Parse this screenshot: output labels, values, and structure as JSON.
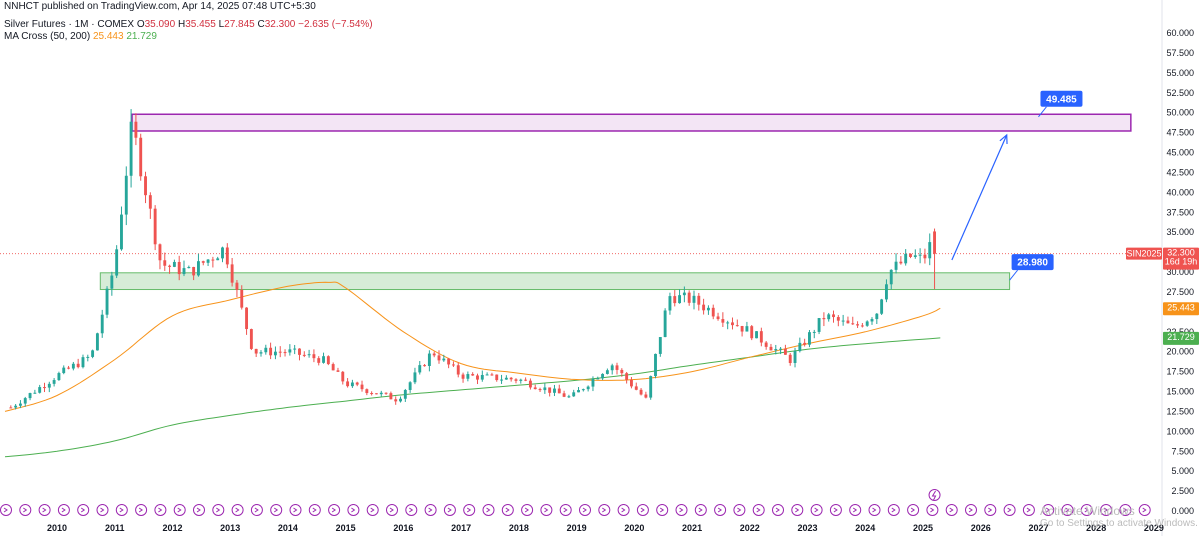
{
  "header": {
    "published": "NNHCT published on TradingView.com, Apr 14, 2025 07:48 UTC+5:30",
    "symbol": "Silver Futures · 1M · COMEX",
    "o_label": "O",
    "o": "35.090",
    "h_label": "H",
    "h": "35.455",
    "l_label": "L",
    "l": "27.845",
    "c_label": "C",
    "c": "32.300",
    "change": "−2.635 (−7.54%)",
    "ma_label": "MA Cross (50, 200)",
    "ma50": "25.443",
    "ma200": "21.729"
  },
  "watermark": {
    "line1": "Activate Windows",
    "line2": "Go to Settings to activate Windows."
  },
  "colors": {
    "up": "#26a69a",
    "down": "#ef5350",
    "ma50": "#f7931a",
    "ma200": "#4caf50",
    "support_zone": "#c8e6c9",
    "resistance_zone": "#f3e5f5",
    "resistance_border": "#9c27b0",
    "annotation": "#2962ff",
    "price_tag": "#ef5350"
  },
  "chart_data": {
    "type": "candlestick",
    "symbol": "Silver Futures · 1M · COMEX",
    "ylim": [
      0,
      60
    ],
    "y_ticks": [
      "60.000",
      "57.500",
      "55.000",
      "52.500",
      "50.000",
      "47.500",
      "45.000",
      "42.500",
      "40.000",
      "37.500",
      "35.000",
      "32.500",
      "30.000",
      "27.500",
      "25.000",
      "22.500",
      "20.000",
      "17.500",
      "15.000",
      "12.500",
      "10.000",
      "7.500",
      "5.000",
      "2.500",
      "0.000"
    ],
    "x_ticks": [
      "2010",
      "2011",
      "2012",
      "2013",
      "2014",
      "2015",
      "2016",
      "2017",
      "2018",
      "2019",
      "2020",
      "2021",
      "2022",
      "2023",
      "2024",
      "2025",
      "2026",
      "2027",
      "2028",
      "2029"
    ],
    "x_tick_years": [
      2010,
      2011,
      2012,
      2013,
      2014,
      2015,
      2016,
      2017,
      2018,
      2019,
      2020,
      2021,
      2022,
      2023,
      2024,
      2025,
      2026,
      2027,
      2028,
      2029
    ],
    "last_bar": {
      "date": "2025-04",
      "open": 35.09,
      "high": 35.455,
      "low": 27.845,
      "close": 32.3
    },
    "price_label": {
      "symbol": "SIN2025",
      "price": "32.300",
      "countdown": "16d 19h"
    },
    "ma50_label": "25.443",
    "ma200_label": "21.729",
    "candles_yearly_anchor": [
      {
        "year": 2009.2,
        "price": 13.0
      },
      {
        "year": 2010.0,
        "price": 17.0
      },
      {
        "year": 2010.6,
        "price": 19.5
      },
      {
        "year": 2011.0,
        "price": 31.0
      },
      {
        "year": 2011.3,
        "price": 48.5
      },
      {
        "year": 2011.8,
        "price": 31.0
      },
      {
        "year": 2012.3,
        "price": 30.0
      },
      {
        "year": 2012.9,
        "price": 33.0
      },
      {
        "year": 2013.4,
        "price": 20.0
      },
      {
        "year": 2014.0,
        "price": 20.0
      },
      {
        "year": 2014.6,
        "price": 19.0
      },
      {
        "year": 2015.0,
        "price": 16.0
      },
      {
        "year": 2015.9,
        "price": 14.0
      },
      {
        "year": 2016.5,
        "price": 20.0
      },
      {
        "year": 2017.0,
        "price": 17.0
      },
      {
        "year": 2018.0,
        "price": 16.5
      },
      {
        "year": 2018.9,
        "price": 14.2
      },
      {
        "year": 2019.6,
        "price": 18.5
      },
      {
        "year": 2020.2,
        "price": 14.0
      },
      {
        "year": 2020.6,
        "price": 27.0
      },
      {
        "year": 2021.0,
        "price": 26.5
      },
      {
        "year": 2022.0,
        "price": 22.5
      },
      {
        "year": 2022.7,
        "price": 19.0
      },
      {
        "year": 2023.3,
        "price": 24.5
      },
      {
        "year": 2023.8,
        "price": 23.0
      },
      {
        "year": 2024.2,
        "price": 25.0
      },
      {
        "year": 2024.4,
        "price": 30.0
      },
      {
        "year": 2024.8,
        "price": 32.0
      },
      {
        "year": 2025.0,
        "price": 31.5
      },
      {
        "year": 2025.2,
        "price": 34.5
      },
      {
        "year": 2025.3,
        "price": 32.3
      }
    ],
    "ma50": [
      {
        "year": 2009.1,
        "value": 12.5
      },
      {
        "year": 2010.0,
        "value": 14.5
      },
      {
        "year": 2011.0,
        "value": 19.0
      },
      {
        "year": 2012.0,
        "value": 24.5
      },
      {
        "year": 2013.0,
        "value": 26.5
      },
      {
        "year": 2014.0,
        "value": 28.2
      },
      {
        "year": 2014.7,
        "value": 28.7
      },
      {
        "year": 2015.0,
        "value": 28.0
      },
      {
        "year": 2016.0,
        "value": 22.5
      },
      {
        "year": 2017.0,
        "value": 18.5
      },
      {
        "year": 2018.0,
        "value": 17.3
      },
      {
        "year": 2019.0,
        "value": 16.5
      },
      {
        "year": 2020.0,
        "value": 16.5
      },
      {
        "year": 2021.0,
        "value": 17.5
      },
      {
        "year": 2022.0,
        "value": 19.3
      },
      {
        "year": 2023.0,
        "value": 21.0
      },
      {
        "year": 2024.0,
        "value": 22.5
      },
      {
        "year": 2025.0,
        "value": 24.5
      },
      {
        "year": 2025.3,
        "value": 25.443
      }
    ],
    "ma200": [
      {
        "year": 2009.1,
        "value": 6.8
      },
      {
        "year": 2010.0,
        "value": 7.5
      },
      {
        "year": 2011.0,
        "value": 8.8
      },
      {
        "year": 2012.0,
        "value": 10.8
      },
      {
        "year": 2013.0,
        "value": 12.0
      },
      {
        "year": 2014.0,
        "value": 13.0
      },
      {
        "year": 2015.0,
        "value": 13.8
      },
      {
        "year": 2016.0,
        "value": 14.6
      },
      {
        "year": 2017.0,
        "value": 15.2
      },
      {
        "year": 2018.0,
        "value": 15.8
      },
      {
        "year": 2019.0,
        "value": 16.4
      },
      {
        "year": 2020.0,
        "value": 17.2
      },
      {
        "year": 2021.0,
        "value": 18.3
      },
      {
        "year": 2022.0,
        "value": 19.3
      },
      {
        "year": 2023.0,
        "value": 20.3
      },
      {
        "year": 2024.0,
        "value": 21.0
      },
      {
        "year": 2025.3,
        "value": 21.729
      }
    ],
    "support_zone": {
      "x_start": 2010.75,
      "x_end": 2026.5,
      "low": 27.8,
      "high": 29.9
    },
    "resistance_zone": {
      "x_start": 2011.3,
      "x_end": 2028.6,
      "low": 47.7,
      "high": 49.8
    },
    "annotations": [
      {
        "type": "label",
        "text": "28.980",
        "x": 2026.5,
        "y": 28.98
      },
      {
        "type": "label",
        "text": "49.485",
        "x": 2027.0,
        "y": 49.485
      },
      {
        "type": "arrow",
        "from": {
          "x": 2025.5,
          "y": 31.5
        },
        "to": {
          "x": 2026.45,
          "y": 47.2
        }
      },
      {
        "type": "dashed_line",
        "y": 32.3,
        "color": "#ef5350"
      }
    ]
  }
}
